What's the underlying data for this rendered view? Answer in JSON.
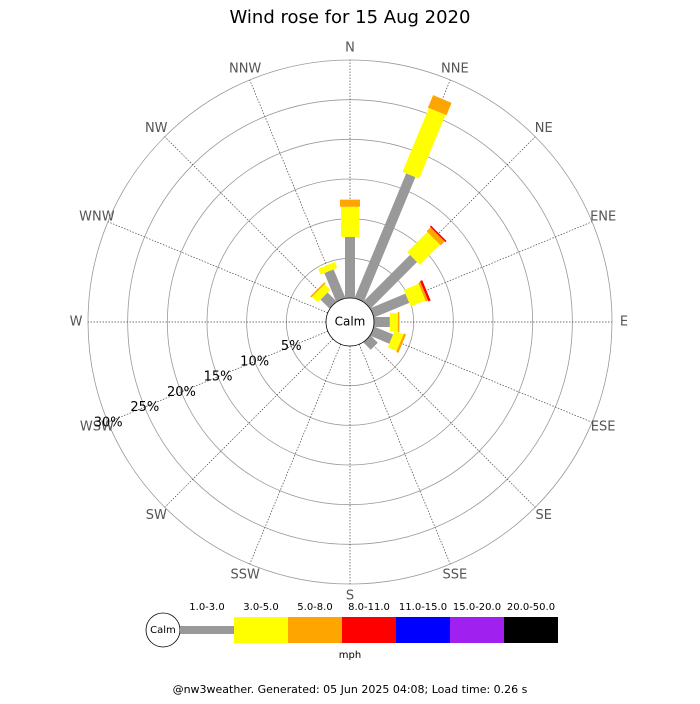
{
  "chart_data": {
    "type": "windrose",
    "title": "Wind rose for 15 Aug 2020",
    "directions": [
      "N",
      "NNE",
      "NE",
      "ENE",
      "E",
      "ESE",
      "SE",
      "SSE",
      "S",
      "SSW",
      "SW",
      "WSW",
      "W",
      "WNW",
      "NW",
      "NNW"
    ],
    "calm_label": "Calm",
    "rlim": [
      0,
      30
    ],
    "rticks": [
      {
        "value": 5,
        "label": "5%"
      },
      {
        "value": 10,
        "label": "10%"
      },
      {
        "value": 15,
        "label": "15%"
      },
      {
        "value": 20,
        "label": "20%"
      },
      {
        "value": 25,
        "label": "25%"
      },
      {
        "value": 30,
        "label": "30%"
      }
    ],
    "series": [
      {
        "name": "1.0-3.0",
        "color": "#999999",
        "values": [
          7.7,
          17.0,
          8.3,
          4.8,
          2.0,
          2.6,
          1.3,
          0,
          0,
          0,
          0,
          0,
          0,
          0,
          1.6,
          3.9
        ]
      },
      {
        "name": "3.0-5.0",
        "color": "#ffff00",
        "values": [
          3.8,
          8.7,
          3.6,
          2.0,
          1.0,
          1.2,
          0,
          0,
          0,
          0,
          0,
          0,
          0,
          0,
          1.0,
          0.8
        ]
      },
      {
        "name": "5.0-8.0",
        "color": "#ffa500",
        "values": [
          0.9,
          1.7,
          0.7,
          0.3,
          0.2,
          0.3,
          0,
          0,
          0,
          0,
          0,
          0,
          0,
          0,
          0.2,
          0
        ]
      },
      {
        "name": "8.0-11.0",
        "color": "#ff0000",
        "values": [
          0,
          0,
          0.2,
          0.3,
          0,
          0,
          0,
          0,
          0,
          0,
          0,
          0,
          0,
          0,
          0,
          0
        ]
      },
      {
        "name": "11.0-15.0",
        "color": "#0000ff",
        "values": [
          0,
          0,
          0,
          0,
          0,
          0,
          0,
          0,
          0,
          0,
          0,
          0,
          0,
          0,
          0,
          0
        ]
      },
      {
        "name": "15.0-20.0",
        "color": "#a020f0",
        "values": [
          0,
          0,
          0,
          0,
          0,
          0,
          0,
          0,
          0,
          0,
          0,
          0,
          0,
          0,
          0,
          0
        ]
      },
      {
        "name": "20.0-50.0",
        "color": "#000000",
        "values": [
          0,
          0,
          0,
          0,
          0,
          0,
          0,
          0,
          0,
          0,
          0,
          0,
          0,
          0,
          0,
          0
        ]
      }
    ],
    "unit": "mph",
    "footer": "@nw3weather. Generated: 05 Jun 2025 04:08; Load time: 0.26 s"
  }
}
